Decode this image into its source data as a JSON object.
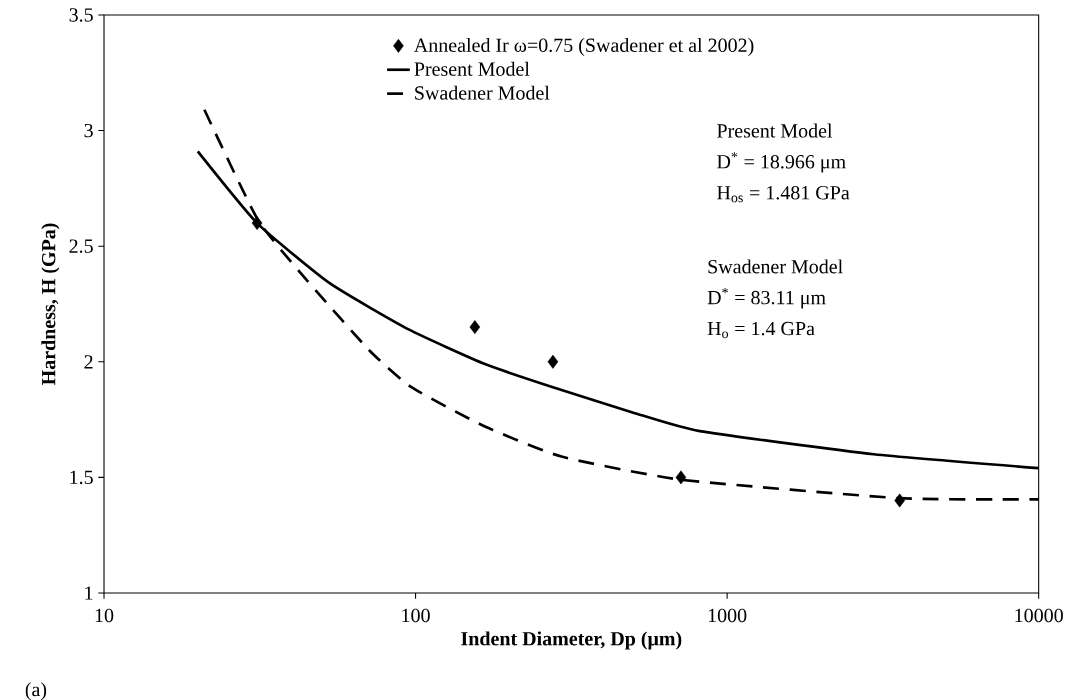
{
  "chart_data": {
    "type": "scatter",
    "xlabel": "Indent Diameter, Dp (μm)",
    "ylabel": "Hardness, H (GPa)",
    "log": "x",
    "xlim": [
      10,
      10000
    ],
    "xticks": [
      10,
      100,
      1000,
      10000
    ],
    "ylim": [
      1,
      3.5
    ],
    "yticks": [
      1,
      1.5,
      2,
      2.5,
      3,
      3.5
    ],
    "grid": false,
    "legend": "top",
    "series": [
      {
        "name": "Annealed Ir ω=0.75 (Swadener et al 2002)",
        "marker": "diamond",
        "color": "#000000",
        "x": [
          31,
          155,
          276,
          711,
          3580
        ],
        "values": [
          2.6,
          2.15,
          2.0,
          1.5,
          1.4
        ]
      },
      {
        "name": "Present Model",
        "type": "line",
        "line_style": "solid",
        "color": "#000000",
        "x": [
          20,
          31,
          53,
          95,
          167,
          276,
          500,
          817,
          2960,
          10000
        ],
        "values": [
          2.91,
          2.6,
          2.34,
          2.14,
          1.99,
          1.89,
          1.78,
          1.7,
          1.6,
          1.54
        ]
      },
      {
        "name": "Swadener Model",
        "type": "line",
        "line_style": "dashed",
        "color": "#000000",
        "x": [
          21,
          31,
          43,
          71,
          97,
          167,
          294,
          711,
          3580,
          10000
        ],
        "values": [
          3.09,
          2.62,
          2.38,
          2.05,
          1.89,
          1.72,
          1.59,
          1.49,
          1.41,
          1.405
        ]
      }
    ],
    "annotations": [
      "Present Model",
      "D$^{*}$ = 18.966 μm",
      "H$_{os}$ = 1.481 GPa",
      "Swadener Model",
      "D$^{*}$ = 83.11 μm",
      "H$_{o}$ = 1.4 GPa",
      "(a)"
    ]
  }
}
